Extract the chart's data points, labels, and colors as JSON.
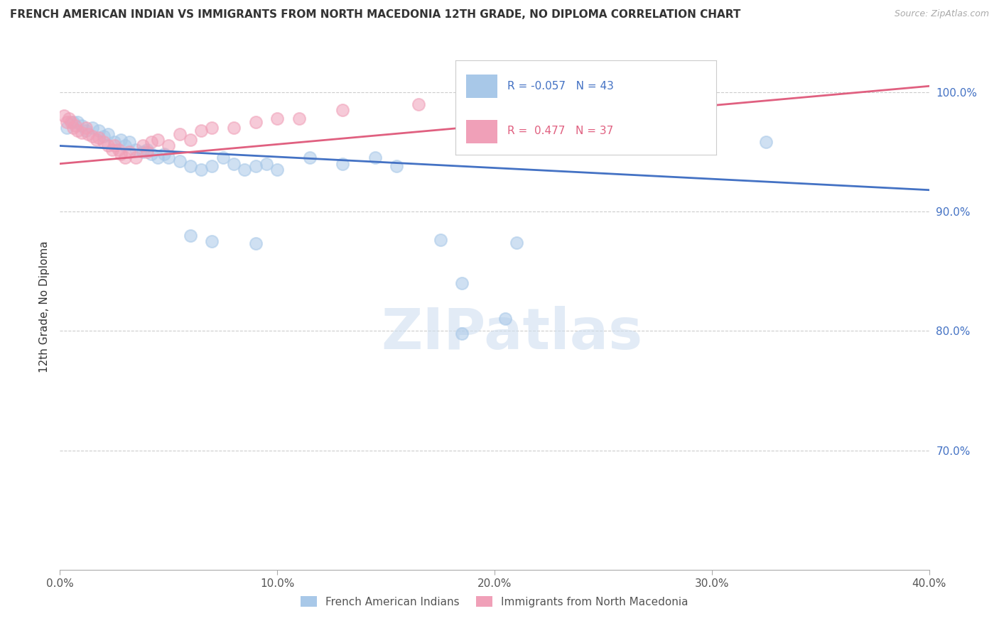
{
  "title": "FRENCH AMERICAN INDIAN VS IMMIGRANTS FROM NORTH MACEDONIA 12TH GRADE, NO DIPLOMA CORRELATION CHART",
  "source": "Source: ZipAtlas.com",
  "ylabel": "12th Grade, No Diploma",
  "xlim": [
    0.0,
    0.4
  ],
  "ylim": [
    0.6,
    1.04
  ],
  "xtick_labels": [
    "0.0%",
    "10.0%",
    "20.0%",
    "30.0%",
    "40.0%"
  ],
  "xtick_vals": [
    0.0,
    0.1,
    0.2,
    0.3,
    0.4
  ],
  "ytick_labels": [
    "100.0%",
    "90.0%",
    "80.0%",
    "70.0%"
  ],
  "ytick_vals": [
    1.0,
    0.9,
    0.8,
    0.7
  ],
  "legend_blue_label": "French American Indians",
  "legend_pink_label": "Immigrants from North Macedonia",
  "R_blue": -0.057,
  "N_blue": 43,
  "R_pink": 0.477,
  "N_pink": 37,
  "blue_color": "#a8c8e8",
  "pink_color": "#f0a0b8",
  "blue_line_color": "#4472c4",
  "pink_line_color": "#e06080",
  "watermark": "ZIPatlas",
  "blue_line_y0": 0.955,
  "blue_line_y1": 0.918,
  "pink_line_y0": 0.94,
  "pink_line_y1": 1.005,
  "blue_dots": [
    [
      0.003,
      0.97
    ],
    [
      0.006,
      0.975
    ],
    [
      0.008,
      0.975
    ],
    [
      0.01,
      0.972
    ],
    [
      0.012,
      0.968
    ],
    [
      0.015,
      0.97
    ],
    [
      0.018,
      0.968
    ],
    [
      0.02,
      0.963
    ],
    [
      0.022,
      0.965
    ],
    [
      0.025,
      0.958
    ],
    [
      0.028,
      0.96
    ],
    [
      0.03,
      0.955
    ],
    [
      0.032,
      0.958
    ],
    [
      0.035,
      0.952
    ],
    [
      0.038,
      0.95
    ],
    [
      0.04,
      0.952
    ],
    [
      0.042,
      0.948
    ],
    [
      0.045,
      0.945
    ],
    [
      0.048,
      0.948
    ],
    [
      0.05,
      0.945
    ],
    [
      0.055,
      0.942
    ],
    [
      0.06,
      0.938
    ],
    [
      0.065,
      0.935
    ],
    [
      0.07,
      0.938
    ],
    [
      0.075,
      0.945
    ],
    [
      0.08,
      0.94
    ],
    [
      0.085,
      0.935
    ],
    [
      0.09,
      0.938
    ],
    [
      0.095,
      0.94
    ],
    [
      0.1,
      0.935
    ],
    [
      0.115,
      0.945
    ],
    [
      0.13,
      0.94
    ],
    [
      0.145,
      0.945
    ],
    [
      0.155,
      0.938
    ],
    [
      0.06,
      0.88
    ],
    [
      0.07,
      0.875
    ],
    [
      0.09,
      0.873
    ],
    [
      0.175,
      0.876
    ],
    [
      0.21,
      0.874
    ],
    [
      0.325,
      0.958
    ],
    [
      0.185,
      0.84
    ],
    [
      0.205,
      0.81
    ],
    [
      0.185,
      0.798
    ]
  ],
  "pink_dots": [
    [
      0.002,
      0.98
    ],
    [
      0.003,
      0.975
    ],
    [
      0.004,
      0.978
    ],
    [
      0.005,
      0.975
    ],
    [
      0.006,
      0.97
    ],
    [
      0.007,
      0.972
    ],
    [
      0.008,
      0.968
    ],
    [
      0.01,
      0.966
    ],
    [
      0.012,
      0.97
    ],
    [
      0.013,
      0.965
    ],
    [
      0.015,
      0.963
    ],
    [
      0.017,
      0.96
    ],
    [
      0.018,
      0.962
    ],
    [
      0.02,
      0.958
    ],
    [
      0.022,
      0.955
    ],
    [
      0.024,
      0.952
    ],
    [
      0.025,
      0.955
    ],
    [
      0.027,
      0.952
    ],
    [
      0.028,
      0.948
    ],
    [
      0.03,
      0.945
    ],
    [
      0.032,
      0.95
    ],
    [
      0.035,
      0.945
    ],
    [
      0.038,
      0.955
    ],
    [
      0.04,
      0.95
    ],
    [
      0.042,
      0.958
    ],
    [
      0.045,
      0.96
    ],
    [
      0.05,
      0.955
    ],
    [
      0.055,
      0.965
    ],
    [
      0.06,
      0.96
    ],
    [
      0.065,
      0.968
    ],
    [
      0.07,
      0.97
    ],
    [
      0.08,
      0.97
    ],
    [
      0.09,
      0.975
    ],
    [
      0.1,
      0.978
    ],
    [
      0.11,
      0.978
    ],
    [
      0.13,
      0.985
    ],
    [
      0.165,
      0.99
    ]
  ]
}
